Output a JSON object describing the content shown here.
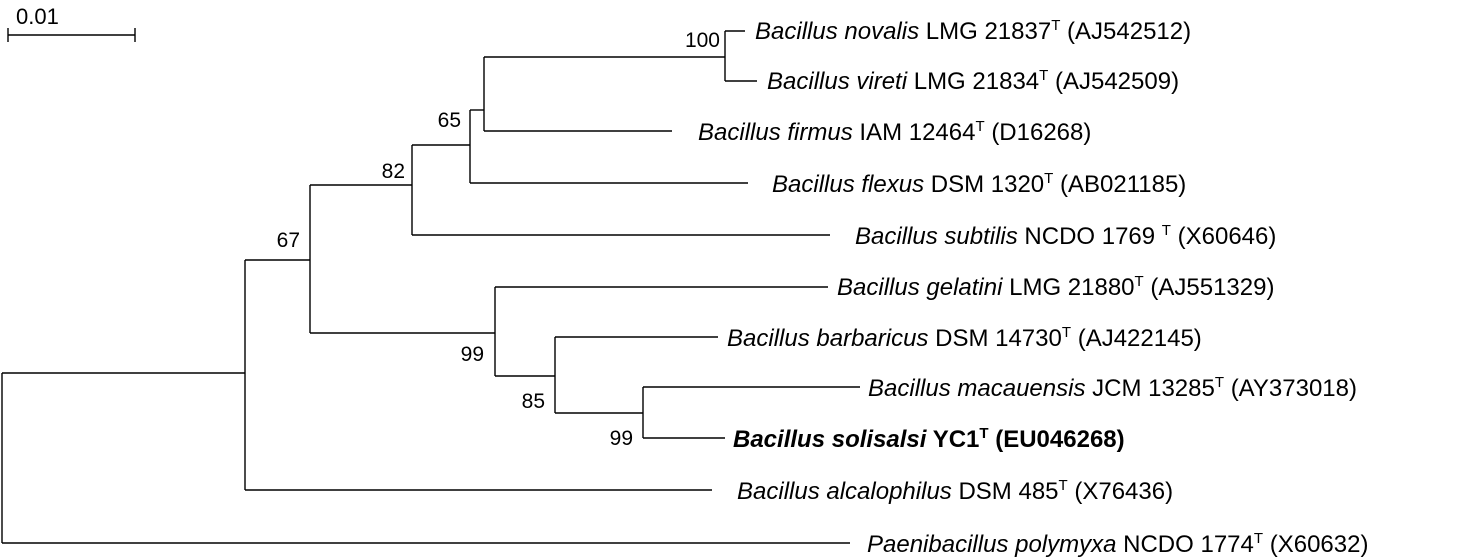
{
  "scale_bar": {
    "label": "0.01"
  },
  "leaves": [
    {
      "id": "novalis",
      "genus": "Bacillus",
      "species": "novalis",
      "strain": "LMG 21837",
      "sup": "T",
      "accession": "(AJ542512)"
    },
    {
      "id": "vireti",
      "genus": "Bacillus",
      "species": "vireti",
      "strain": "LMG 21834",
      "sup": "T",
      "accession": "(AJ542509)"
    },
    {
      "id": "firmus",
      "genus": "Bacillus",
      "species": "firmus",
      "strain": "IAM 12464",
      "sup": "T",
      "accession": "(D16268)"
    },
    {
      "id": "flexus",
      "genus": "Bacillus",
      "species": "flexus",
      "strain": "DSM 1320",
      "sup": "T",
      "accession": "(AB021185)"
    },
    {
      "id": "subtilis",
      "genus": "Bacillus",
      "species": "subtilis",
      "strain": "NCDO 1769 ",
      "sup": "T",
      "accession": "(X60646)"
    },
    {
      "id": "gelatini",
      "genus": "Bacillus",
      "species": "gelatini",
      "strain": "LMG 21880",
      "sup": "T",
      "accession": "(AJ551329)"
    },
    {
      "id": "barbaricus",
      "genus": "Bacillus",
      "species": "barbaricus",
      "strain": "DSM 14730",
      "sup": "T",
      "accession": "(AJ422145)"
    },
    {
      "id": "macauensis",
      "genus": "Bacillus",
      "species": "macauensis",
      "strain": "JCM 13285",
      "sup": "T",
      "accession": "(AY373018)"
    },
    {
      "id": "solisalsi",
      "genus": "Bacillus",
      "species": "solisalsi",
      "strain": "YC1",
      "sup": "T",
      "accession": "(EU046268)",
      "highlight": true
    },
    {
      "id": "alcalophilus",
      "genus": "Bacillus",
      "species": "alcalophilus",
      "strain": "DSM 485",
      "sup": "T",
      "accession": "(X76436)"
    },
    {
      "id": "polymyxa",
      "genus": "Paenibacillus",
      "species": "polymyxa",
      "strain": " NCDO 1774",
      "sup": "T",
      "accession": "(X60632)"
    }
  ],
  "bootstrap_values": {
    "novalis_vireti": "100",
    "firmus_clade": "65",
    "flexus_clade": "82",
    "upper_clade": "67",
    "gelatini_clade": "99",
    "barbaricus_clade": "85",
    "macauensis_solisalsi": "99"
  }
}
